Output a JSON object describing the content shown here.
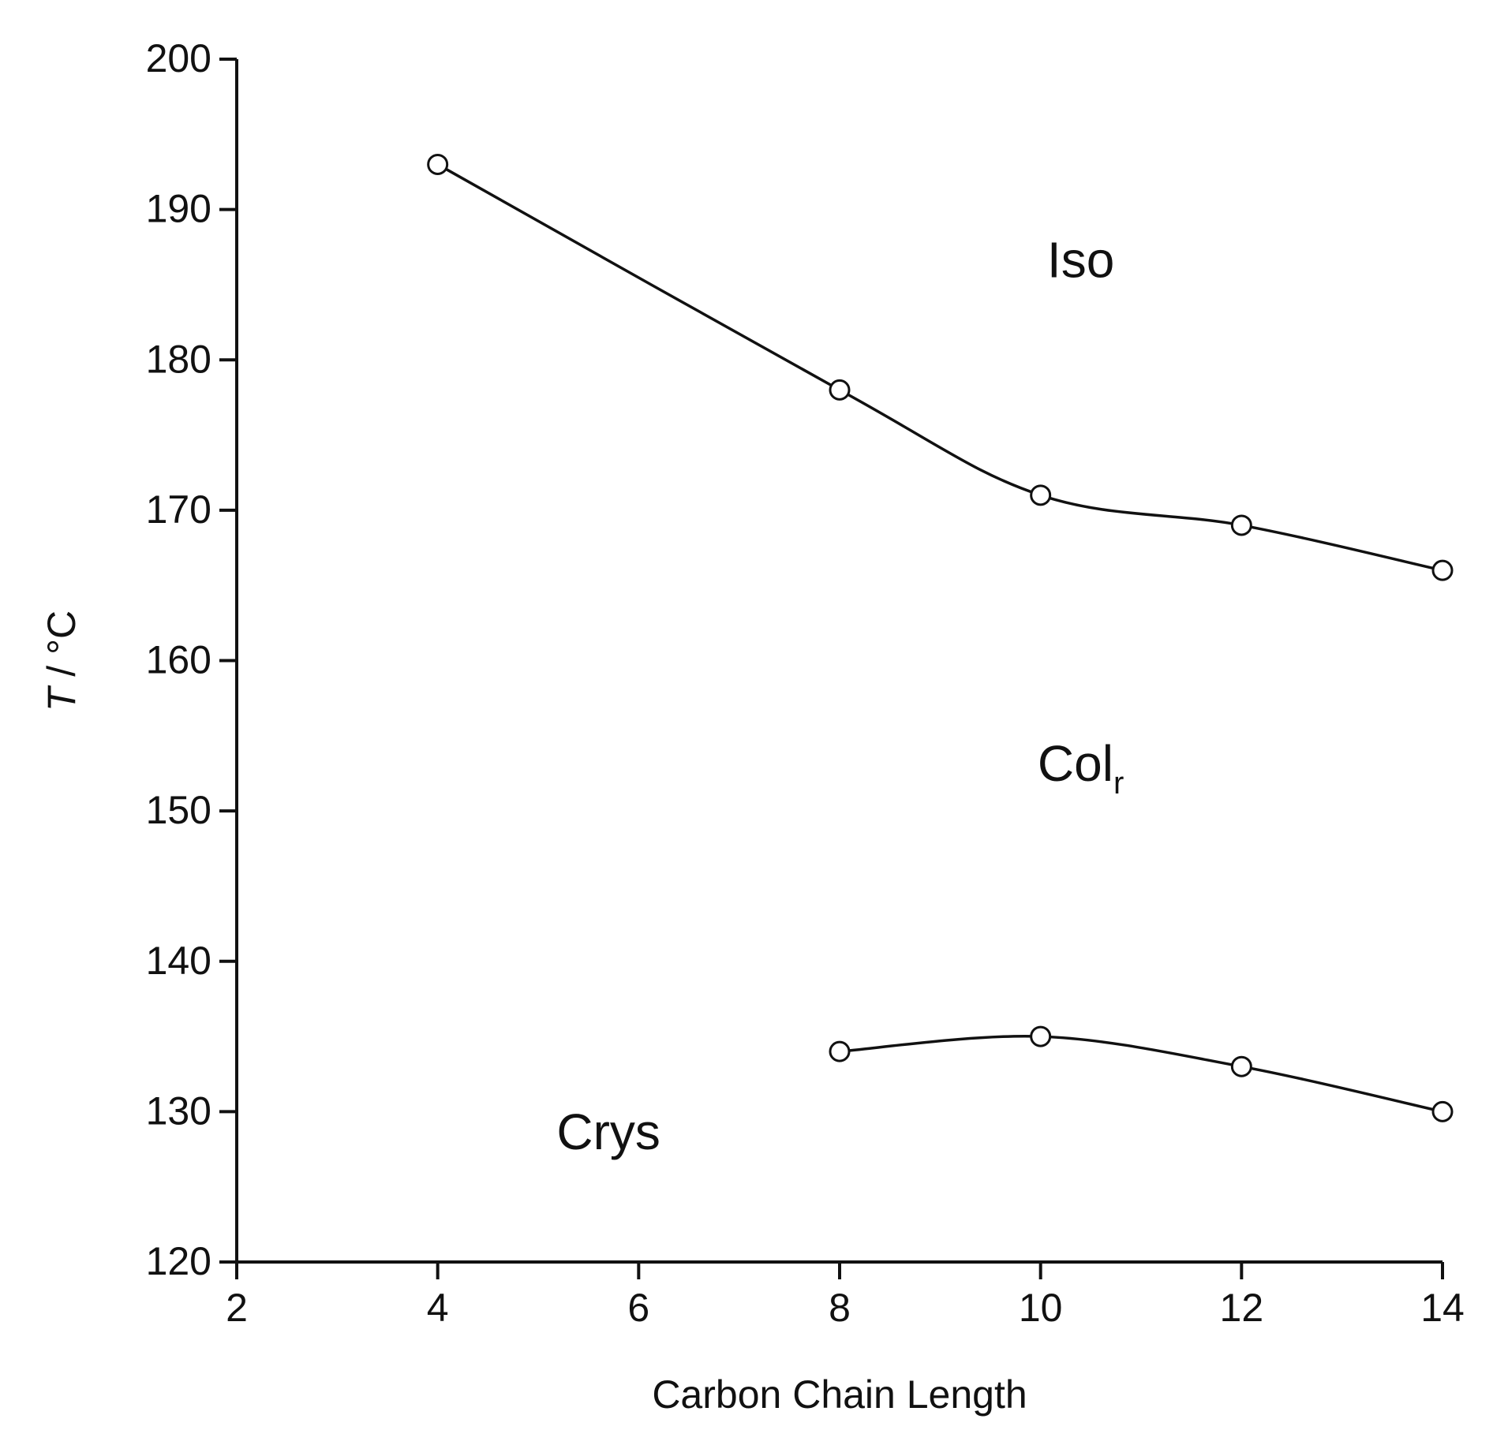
{
  "chart_data": {
    "type": "line",
    "xlabel": "Carbon Chain Length",
    "ylabel": "T / °C",
    "ylabel_italic_part": "T",
    "ylabel_rest": " / °C",
    "xlim": [
      2,
      14
    ],
    "ylim": [
      120,
      200
    ],
    "x_ticks": [
      2,
      4,
      6,
      8,
      10,
      12,
      14
    ],
    "y_ticks": [
      120,
      130,
      140,
      150,
      160,
      170,
      180,
      190,
      200
    ],
    "grid": false,
    "series": [
      {
        "x": [
          4,
          8,
          10,
          12,
          14
        ],
        "y": [
          193,
          178,
          171,
          169,
          166
        ],
        "marker": "open-circle"
      },
      {
        "x": [
          8,
          10,
          12,
          14
        ],
        "y": [
          134,
          135,
          133,
          130
        ],
        "marker": "open-circle"
      }
    ],
    "annotations": [
      {
        "text": "Iso",
        "x": 10.4,
        "y": 185.5
      },
      {
        "text": "Col",
        "subscript": "r",
        "x": 10.4,
        "y": 152
      },
      {
        "text": "Crys",
        "x": 5.7,
        "y": 127.5
      }
    ]
  }
}
